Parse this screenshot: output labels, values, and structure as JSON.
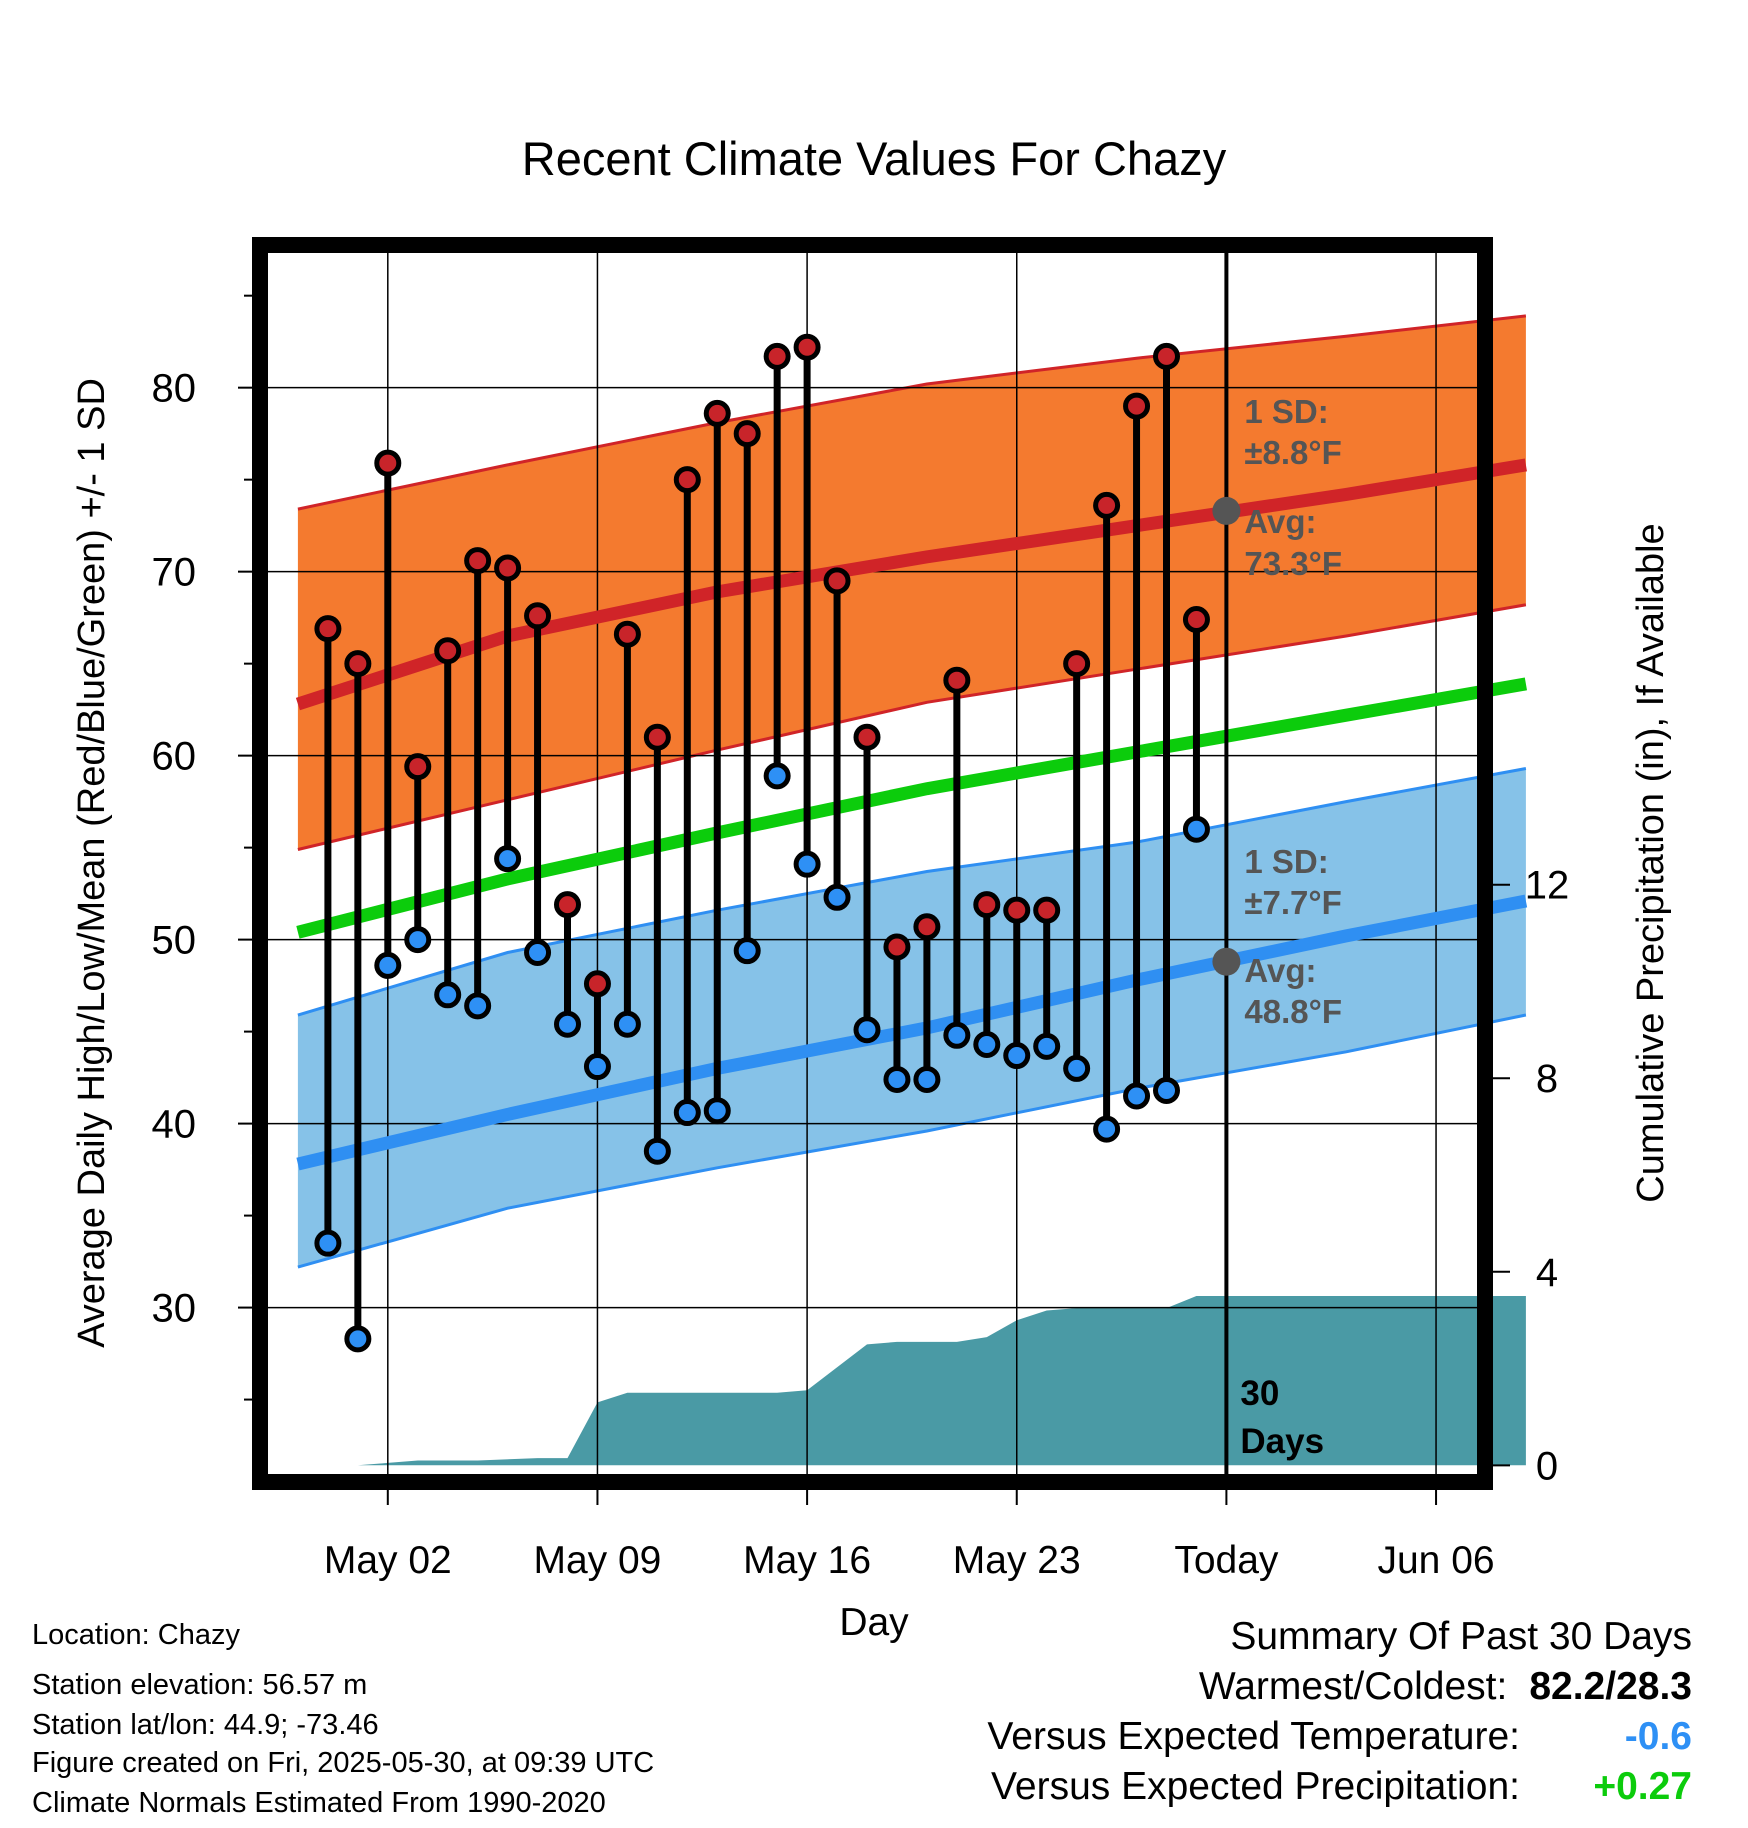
{
  "chart_data": {
    "type": "line",
    "title": "Recent Climate Values For Chazy",
    "xlabel": "Day",
    "ylabel": "Average Daily High/Low/Mean (Red/Blue/Green) +/- 1 SD",
    "y2label": "Cumulative Precipitation (in), If Available",
    "x_tick_labels": [
      "May 02",
      "May 09",
      "May 16",
      "May 23",
      "Today",
      "Jun 06"
    ],
    "y_ticks": [
      30,
      40,
      50,
      60,
      70,
      80
    ],
    "y2_ticks": [
      0,
      4,
      8,
      12
    ],
    "ylim": [
      20.9,
      87.7
    ],
    "y2lim": [
      -0.2,
      25.2
    ],
    "grid": true,
    "annotations": {
      "high_sd_label": "1 SD:",
      "high_sd_value": "±8.8°F",
      "high_avg_label": "Avg:",
      "high_avg_value": "73.3°F",
      "low_sd_label": "1 SD:",
      "low_sd_value": "±7.7°F",
      "low_avg_label": "Avg:",
      "low_avg_value": "48.8°F",
      "period_number": "30",
      "period_unit": "Days"
    },
    "observed_dates": [
      "Apr 30",
      "May 01",
      "May 02",
      "May 03",
      "May 04",
      "May 05",
      "May 06",
      "May 07",
      "May 08",
      "May 09",
      "May 10",
      "May 11",
      "May 12",
      "May 13",
      "May 14",
      "May 15",
      "May 16",
      "May 17",
      "May 18",
      "May 19",
      "May 20",
      "May 21",
      "May 22",
      "May 23",
      "May 24",
      "May 25",
      "May 26",
      "May 27",
      "May 28",
      "May 29"
    ],
    "observed_high": [
      66.9,
      65.0,
      75.9,
      59.4,
      65.7,
      70.6,
      70.2,
      67.6,
      51.9,
      47.6,
      66.6,
      61.0,
      75.0,
      78.6,
      77.5,
      81.7,
      82.2,
      69.5,
      61.0,
      49.6,
      50.7,
      64.1,
      51.9,
      51.6,
      51.6,
      65.0,
      73.6,
      79.0,
      81.7,
      67.4
    ],
    "observed_low": [
      33.5,
      28.3,
      48.6,
      50.0,
      47.0,
      46.4,
      54.4,
      49.3,
      45.4,
      43.1,
      45.4,
      38.5,
      40.6,
      40.7,
      49.4,
      58.9,
      54.1,
      52.3,
      45.1,
      42.4,
      42.4,
      44.8,
      44.3,
      43.7,
      44.2,
      43.0,
      39.7,
      41.5,
      41.8,
      56.0
    ],
    "normal_dates": [
      "Apr 29",
      "May 06",
      "May 13",
      "May 20",
      "May 27",
      "Jun 03",
      "Jun 09"
    ],
    "normal_high_mean": [
      62.8,
      66.5,
      68.9,
      70.8,
      72.5,
      74.2,
      75.8
    ],
    "normal_high_upper": [
      73.4,
      75.8,
      78.1,
      80.2,
      81.6,
      82.8,
      83.9
    ],
    "normal_high_lower": [
      54.9,
      57.6,
      60.3,
      62.9,
      64.7,
      66.5,
      68.2
    ],
    "normal_mean": [
      50.4,
      53.3,
      55.8,
      58.2,
      60.2,
      62.2,
      63.9
    ],
    "normal_low_mean": [
      37.8,
      40.5,
      43.0,
      45.2,
      47.8,
      50.2,
      52.1
    ],
    "normal_low_upper": [
      45.9,
      49.3,
      51.6,
      53.7,
      55.3,
      57.5,
      59.3
    ],
    "normal_low_lower": [
      32.2,
      35.4,
      37.6,
      39.6,
      41.9,
      43.9,
      45.9
    ],
    "precip_dates": [
      "Apr 29",
      "May 01",
      "May 02",
      "May 03",
      "May 05",
      "May 07",
      "May 08",
      "May 09",
      "May 10",
      "May 11",
      "May 15",
      "May 16",
      "May 18",
      "May 19",
      "May 21",
      "May 22",
      "May 23",
      "May 24",
      "May 25",
      "May 28",
      "May 29",
      "Jun 09"
    ],
    "precip_cumulative": [
      0.0,
      0.0,
      0.05,
      0.1,
      0.1,
      0.15,
      0.15,
      1.3,
      1.5,
      1.5,
      1.5,
      1.55,
      2.5,
      2.55,
      2.55,
      2.65,
      3.0,
      3.2,
      3.25,
      3.25,
      3.5,
      3.5
    ],
    "colors": {
      "high_band": "#f47a2f",
      "high_line": "#d02428",
      "low_band": "#86c2e8",
      "low_line": "#2f8ff2",
      "mean_line": "#0ccc0c",
      "precip": "#4a9aa5",
      "high_dot": "#c8242a",
      "low_dot": "#2e90f5",
      "avg_dot": "#555555",
      "annotation_text": "#555555"
    }
  },
  "footer": {
    "location": "Location: Chazy",
    "elevation": "Station elevation: 56.57 m",
    "latlon": "Station lat/lon: 44.9; -73.46",
    "created": "Figure created on Fri, 2025-05-30, at 09:39 UTC",
    "normals": "Climate Normals Estimated From 1990-2020"
  },
  "summary": {
    "title": "Summary Of Past 30 Days",
    "warmest_coldest_label": "Warmest/Coldest:",
    "warmest_coldest_value": "82.2/28.3",
    "temp_label": "Versus Expected Temperature:",
    "temp_value": "-0.6",
    "temp_color": "#2e90f5",
    "precip_label": "Versus Expected Precipitation:",
    "precip_value": "+0.27",
    "precip_color": "#0ccc0c"
  }
}
